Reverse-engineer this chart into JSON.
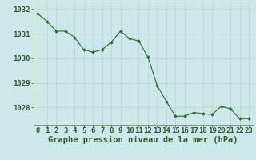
{
  "x": [
    0,
    1,
    2,
    3,
    4,
    5,
    6,
    7,
    8,
    9,
    10,
    11,
    12,
    13,
    14,
    15,
    16,
    17,
    18,
    19,
    20,
    21,
    22,
    23
  ],
  "y": [
    1031.8,
    1031.5,
    1031.1,
    1031.1,
    1030.85,
    1030.35,
    1030.25,
    1030.35,
    1030.65,
    1031.1,
    1030.8,
    1030.7,
    1030.05,
    1028.9,
    1028.25,
    1027.65,
    1027.65,
    1027.8,
    1027.75,
    1027.72,
    1028.05,
    1027.95,
    1027.55,
    1027.55
  ],
  "ylim": [
    1027.3,
    1032.3
  ],
  "yticks": [
    1028,
    1029,
    1030,
    1031,
    1032
  ],
  "xticks": [
    0,
    1,
    2,
    3,
    4,
    5,
    6,
    7,
    8,
    9,
    10,
    11,
    12,
    13,
    14,
    15,
    16,
    17,
    18,
    19,
    20,
    21,
    22,
    23
  ],
  "xlabel": "Graphe pression niveau de la mer (hPa)",
  "line_color": "#2d6a2d",
  "marker_color": "#2d6a2d",
  "bg_color": "#cce8e8",
  "plot_bg_color": "#cce8e8",
  "grid_color": "#b8d4d4",
  "tick_color": "#2d5a2d",
  "font_size_xlabel": 7.5,
  "font_size_ticks": 6.5
}
